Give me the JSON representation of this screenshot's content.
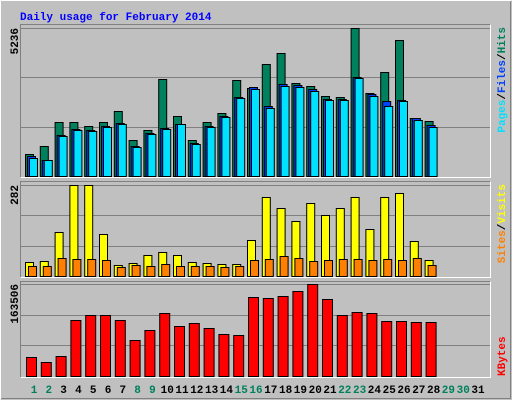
{
  "chart_data": [
    {
      "type": "bar",
      "title": "Daily usage for February 2014",
      "legend_separator": "/",
      "ylim": [
        0,
        5236
      ],
      "yticks": [
        5236
      ],
      "grid": true,
      "series": [
        {
          "name": "Hits",
          "color": "#00805c",
          "values": [
            778,
            1061,
            1910,
            1910,
            1769,
            1910,
            2300,
            1274,
            1627,
            3432,
            2123,
            1274,
            1910,
            2229,
            3396,
            3113,
            3962,
            4351,
            3290,
            3184,
            2830,
            2795,
            5236,
            2936,
            3679,
            4811,
            2052,
            1946,
            null,
            null,
            null
          ]
        },
        {
          "name": "Files",
          "color": "#0040ff",
          "values": [
            708,
            566,
            1451,
            1663,
            1627,
            1769,
            1875,
            1061,
            1521,
            1698,
            1840,
            1168,
            1769,
            2123,
            2795,
            3149,
            2477,
            3255,
            3220,
            3078,
            2724,
            2724,
            3503,
            2901,
            2654,
            2689,
            2052,
            1804,
            null,
            null,
            null
          ]
        },
        {
          "name": "Pages",
          "color": "#00e0ff",
          "values": [
            637,
            566,
            1415,
            1627,
            1592,
            1733,
            1840,
            1026,
            1486,
            1663,
            1840,
            1132,
            1733,
            2087,
            2760,
            3078,
            2406,
            3184,
            3149,
            3007,
            2689,
            2689,
            3467,
            2830,
            2477,
            2654,
            1981,
            1733,
            null,
            null,
            null
          ]
        }
      ]
    },
    {
      "type": "bar",
      "legend_separator": "/",
      "ylim": [
        0,
        282
      ],
      "yticks": [
        282
      ],
      "grid": true,
      "series": [
        {
          "name": "Visits",
          "color": "#ffff00",
          "values": [
            42,
            47,
            136,
            282,
            282,
            130,
            34,
            40,
            65,
            74,
            65,
            43,
            40,
            37,
            37,
            112,
            245,
            211,
            170,
            227,
            189,
            211,
            245,
            146,
            245,
            257,
            108,
            50,
            null,
            null,
            null
          ]
        },
        {
          "name": "Sites",
          "color": "#ff8000",
          "values": [
            31,
            31,
            56,
            53,
            53,
            50,
            28,
            34,
            31,
            37,
            31,
            31,
            31,
            28,
            31,
            50,
            53,
            62,
            56,
            47,
            50,
            53,
            53,
            50,
            53,
            50,
            56,
            34,
            null,
            null,
            null
          ]
        }
      ]
    },
    {
      "type": "bar",
      "ylim": [
        0,
        163506
      ],
      "yticks": [
        163506
      ],
      "grid": true,
      "categories": [
        "1",
        "2",
        "3",
        "4",
        "5",
        "6",
        "7",
        "8",
        "9",
        "10",
        "11",
        "12",
        "13",
        "14",
        "15",
        "16",
        "17",
        "18",
        "19",
        "20",
        "21",
        "22",
        "23",
        "24",
        "25",
        "26",
        "27",
        "28",
        "29",
        "30",
        "31"
      ],
      "category_colors": [
        "#00805c",
        "#00805c",
        "#000000",
        "#000000",
        "#000000",
        "#000000",
        "#000000",
        "#00805c",
        "#00805c",
        "#000000",
        "#000000",
        "#000000",
        "#000000",
        "#000000",
        "#00805c",
        "#00805c",
        "#000000",
        "#000000",
        "#000000",
        "#000000",
        "#000000",
        "#00805c",
        "#00805c",
        "#000000",
        "#000000",
        "#000000",
        "#000000",
        "#000000",
        "#00805c",
        "#00805c",
        "#000000"
      ],
      "series": [
        {
          "name": "KBytes",
          "color": "#ff0000",
          "values": [
            33765,
            24880,
            35542,
            99516,
            108400,
            108400,
            99516,
            63975,
            81745,
            111955,
            88853,
            94184,
            85300,
            74637,
            72860,
            140389,
            138612,
            142166,
            151051,
            163506,
            136835,
            108400,
            113730,
            111955,
            97739,
            97739,
            95962,
            95962,
            null,
            null,
            null
          ]
        }
      ]
    }
  ]
}
